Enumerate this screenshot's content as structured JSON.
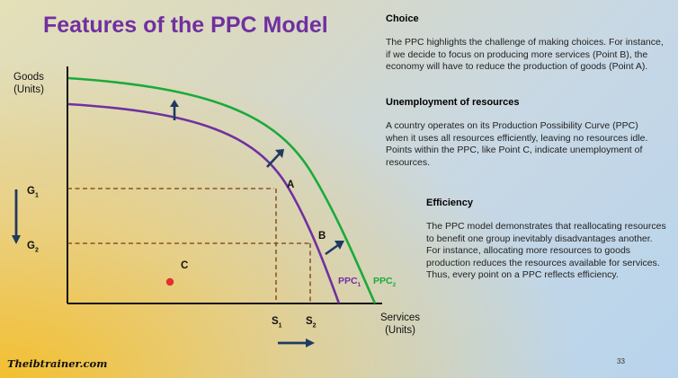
{
  "slide": {
    "title": "Features of the PPC Model",
    "page_number": "33",
    "logo_text": "Theibtrainer.com"
  },
  "sections": [
    {
      "heading": "Choice",
      "text": "The PPC highlights the challenge of making choices. For instance, if we decide to focus on producing more services (Point B), the economy will have to reduce the production of goods (Point A)."
    },
    {
      "heading": "Unemployment of resources",
      "text": "A country operates on its Production Possibility Curve (PPC) when it uses all resources efficiently, leaving no resources idle. Points within the PPC, like Point C, indicate unemployment of resources."
    },
    {
      "heading": "Efficiency",
      "text": "The PPC model demonstrates that reallocating resources to benefit one group inevitably disadvantages another. For instance, allocating more resources to goods production reduces the resources available for services. Thus, every point on a PPC reflects efficiency."
    }
  ],
  "diagram": {
    "y_axis_label_line1": "Goods",
    "y_axis_label_line2": "(Units)",
    "x_axis_label_line1": "Services",
    "x_axis_label_line2": "(Units)",
    "g1": {
      "base": "G",
      "sub": "1"
    },
    "g2": {
      "base": "G",
      "sub": "2"
    },
    "s1": {
      "base": "S",
      "sub": "1"
    },
    "s2": {
      "base": "S",
      "sub": "2"
    },
    "point_a": "A",
    "point_b": "B",
    "point_c": "C",
    "ppc1": {
      "base": "PPC",
      "sub": "1"
    },
    "ppc2": {
      "base": "PPC",
      "sub": "2"
    },
    "colors": {
      "ppc1": "#7030a0",
      "ppc2": "#1aaa3a",
      "arrows": "#1f3a60",
      "point_c": "#e03030",
      "dashed": "#7a3a10",
      "title": "#7030a0"
    }
  }
}
